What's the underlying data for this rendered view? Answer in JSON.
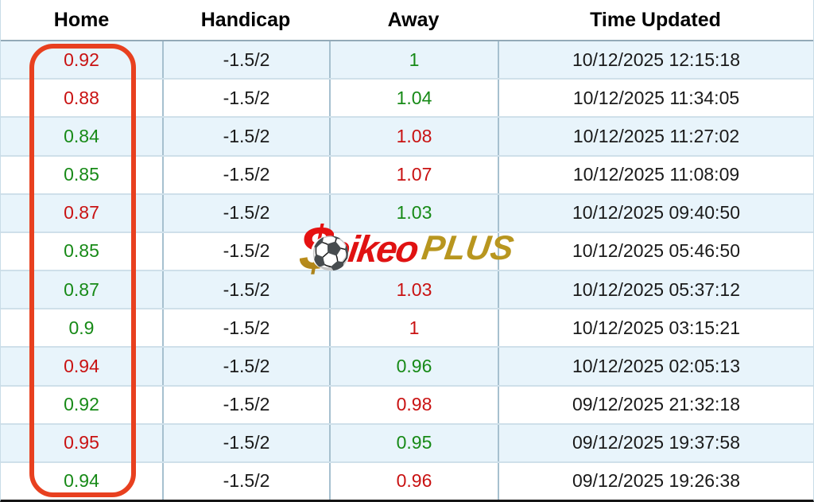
{
  "table": {
    "columns": [
      "Home",
      "Handicap",
      "Away",
      "Time Updated"
    ]
  },
  "rows": [
    {
      "home": "0.92",
      "home_color": "red",
      "handicap": "-1.5/2",
      "away": "1",
      "away_color": "green",
      "time": "10/12/2025 12:15:18"
    },
    {
      "home": "0.88",
      "home_color": "red",
      "handicap": "-1.5/2",
      "away": "1.04",
      "away_color": "green",
      "time": "10/12/2025 11:34:05"
    },
    {
      "home": "0.84",
      "home_color": "green",
      "handicap": "-1.5/2",
      "away": "1.08",
      "away_color": "red",
      "time": "10/12/2025 11:27:02"
    },
    {
      "home": "0.85",
      "home_color": "green",
      "handicap": "-1.5/2",
      "away": "1.07",
      "away_color": "red",
      "time": "10/12/2025 11:08:09"
    },
    {
      "home": "0.87",
      "home_color": "red",
      "handicap": "-1.5/2",
      "away": "1.03",
      "away_color": "green",
      "time": "10/12/2025 09:40:50"
    },
    {
      "home": "0.85",
      "home_color": "green",
      "handicap": "-1.5/2",
      "away": "",
      "away_color": "",
      "time": "10/12/2025 05:46:50"
    },
    {
      "home": "0.87",
      "home_color": "green",
      "handicap": "-1.5/2",
      "away": "1.03",
      "away_color": "red",
      "time": "10/12/2025 05:37:12"
    },
    {
      "home": "0.9",
      "home_color": "green",
      "handicap": "-1.5/2",
      "away": "1",
      "away_color": "red",
      "time": "10/12/2025 03:15:21"
    },
    {
      "home": "0.94",
      "home_color": "red",
      "handicap": "-1.5/2",
      "away": "0.96",
      "away_color": "green",
      "time": "10/12/2025 02:05:13"
    },
    {
      "home": "0.92",
      "home_color": "green",
      "handicap": "-1.5/2",
      "away": "0.98",
      "away_color": "red",
      "time": "09/12/2025 21:32:18"
    },
    {
      "home": "0.95",
      "home_color": "red",
      "handicap": "-1.5/2",
      "away": "0.95",
      "away_color": "green",
      "time": "09/12/2025 19:37:58"
    },
    {
      "home": "0.94",
      "home_color": "green",
      "handicap": "-1.5/2",
      "away": "0.96",
      "away_color": "red",
      "time": "09/12/2025 19:26:38"
    }
  ],
  "watermark": {
    "dollar_glyph": "$",
    "ball_glyph": "⚽",
    "text_red": "oikeo",
    "text_gold": "PLUS"
  },
  "colors": {
    "odds_down_red": "#c91212",
    "odds_up_green": "#178a17",
    "highlight_box_red": "#e8401f",
    "row_alt_background": "#e8f4fb",
    "watermark_red": "#e01212",
    "watermark_gold": "#b8961f"
  }
}
